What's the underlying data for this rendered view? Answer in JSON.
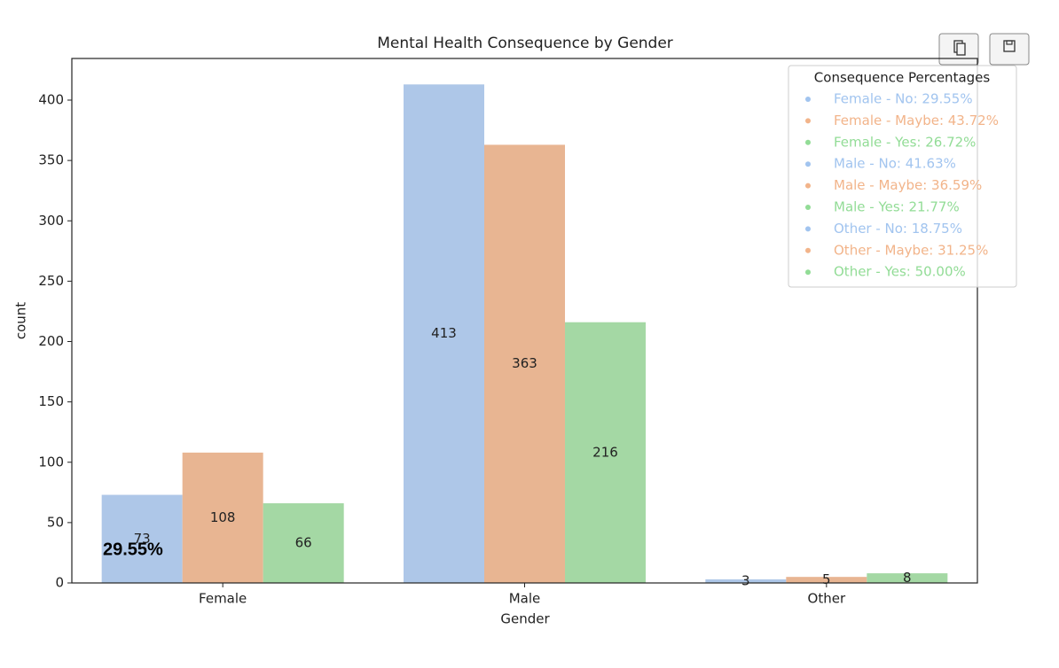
{
  "chart_data": {
    "type": "bar",
    "title": "Mental Health Consequence by Gender",
    "x_label": "Gender",
    "y_label": "count",
    "categories": [
      "Female",
      "Male",
      "Other"
    ],
    "series": [
      {
        "color": "#aec7e8",
        "values": [
          73,
          413,
          3
        ]
      },
      {
        "color": "#e8b592",
        "values": [
          108,
          363,
          5
        ]
      },
      {
        "color": "#a4d8a4",
        "values": [
          66,
          216,
          8
        ]
      }
    ],
    "ylim": [
      0,
      434.5
    ],
    "yticks": [
      0,
      50,
      100,
      150,
      200,
      250,
      300,
      350,
      400
    ],
    "legend": {
      "title": "Consequence Percentages",
      "entries": [
        {
          "label": "Female - No: 29.55%",
          "color": "#a1c4ef"
        },
        {
          "label": "Female - Maybe: 43.72%",
          "color": "#f2b48a"
        },
        {
          "label": "Female - Yes: 26.72%",
          "color": "#92dc96"
        },
        {
          "label": "Male - No: 41.63%",
          "color": "#a1c4ef"
        },
        {
          "label": "Male - Maybe: 36.59%",
          "color": "#f2b48a"
        },
        {
          "label": "Male - Yes: 21.77%",
          "color": "#92dc96"
        },
        {
          "label": "Other - No: 18.75%",
          "color": "#a1c4ef"
        },
        {
          "label": "Other - Maybe: 31.25%",
          "color": "#f2b48a"
        },
        {
          "label": "Other - Yes: 50.00%",
          "color": "#92dc96"
        }
      ]
    },
    "annotations": [
      {
        "text": "29.55%"
      }
    ]
  }
}
